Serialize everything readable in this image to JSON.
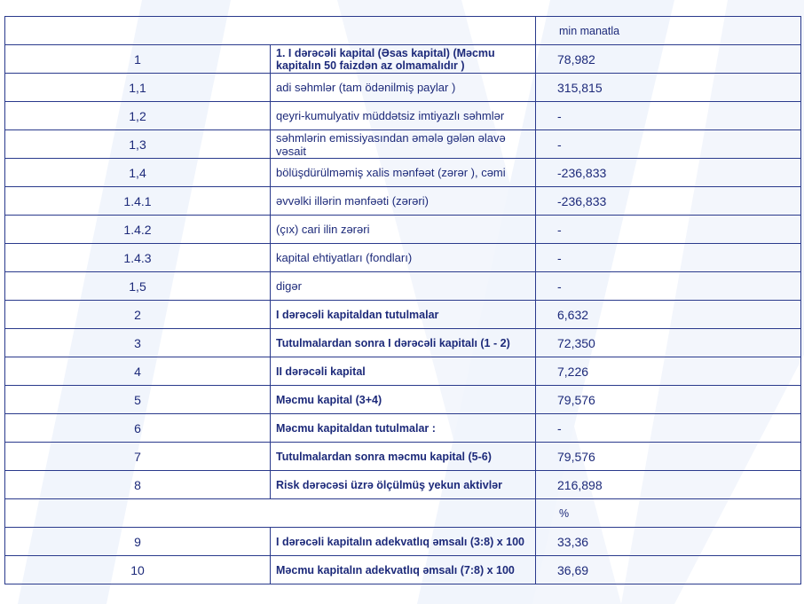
{
  "header": {
    "unit": "min manatla"
  },
  "rows": [
    {
      "num": "1",
      "label": "1. I dərəcəli kapital (Əsas kapital) (Məcmu kapitalın 50 faizdən  az olmamalıdır )",
      "value": "78,982",
      "bold": true
    },
    {
      "num": "1,1",
      "label": "adi səhmlər (tam ödənilmiş paylar )",
      "value": "315,815",
      "bold": false
    },
    {
      "num": "1,2",
      "label": "qeyri-kumulyativ müddətsiz imtiyazlı səhmlər",
      "value": "-",
      "bold": false
    },
    {
      "num": "1,3",
      "label": "səhmlərin emissiyasından əmələ gələn  əlavə vəsait",
      "value": "-",
      "bold": false
    },
    {
      "num": "1,4",
      "label": "bölüşdürülməmiş xalis mənfəət (zərər ), cəmi",
      "value": "-236,833",
      "bold": false
    },
    {
      "num": "1.4.1",
      "label": "əvvəlki illərin mənfəəti (zərəri)",
      "value": "-236,833",
      "bold": false
    },
    {
      "num": "1.4.2",
      "label": "(çıx) cari ilin zərəri",
      "value": "-",
      "bold": false
    },
    {
      "num": "1.4.3",
      "label": "kapital ehtiyatları (fondları)",
      "value": "-",
      "bold": false
    },
    {
      "num": "1,5",
      "label": "digər",
      "value": "-",
      "bold": false
    },
    {
      "num": "2",
      "label": "I dərəcəli kapitaldan  tutulmalar",
      "value": "6,632",
      "bold": true
    },
    {
      "num": "3",
      "label": "Tutulmalardan  sonra I dərəcəli kapitalı (1 - 2)",
      "value": "72,350",
      "bold": true
    },
    {
      "num": "4",
      "label": "II dərəcəli  kapital",
      "value": "7,226",
      "bold": true
    },
    {
      "num": "5",
      "label": "Məcmu kapital (3+4)",
      "value": "79,576",
      "bold": true
    },
    {
      "num": "6",
      "label": "Məcmu kapitaldan tutulmalar :",
      "value": "-",
      "bold": true
    },
    {
      "num": "7",
      "label": "Tutulmalardan sonra məcmu kapital (5-6)",
      "value": "79,576",
      "bold": true
    },
    {
      "num": "8",
      "label": "Risk dərəcəsi üzrə ölçülmüş  yekun aktivlər",
      "value": "216,898",
      "bold": true
    }
  ],
  "percent_header": {
    "unit": "%"
  },
  "ratio_rows": [
    {
      "num": "9",
      "label": "I dərəcəli  kapitalın  adekvatlıq əmsalı (3:8) x 100",
      "value": "33,36",
      "bold": true
    },
    {
      "num": "10",
      "label": "Məcmu kapitalın  adekvatlıq  əmsalı (7:8) x 100",
      "value": "36,69",
      "bold": true
    }
  ],
  "colors": {
    "text": "#1d2a7a",
    "border": "#2a3a8c",
    "watermark": "#eef3fb"
  }
}
